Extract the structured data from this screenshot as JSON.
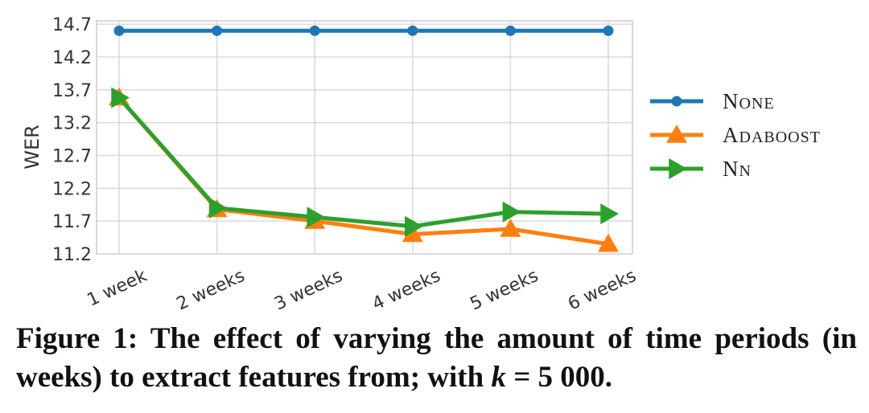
{
  "caption": {
    "prefix": "Figure 1: The effect of varying the amount of time periods (in weeks) to extract features from; with ",
    "math_var": "k",
    "math_rest": " = 5 000."
  },
  "chart_data": {
    "type": "line",
    "categories": [
      "1 week",
      "2 weeks",
      "3 weeks",
      "4 weeks",
      "5 weeks",
      "6 weeks"
    ],
    "ylabel": "WER",
    "xlabel": "",
    "ylim": [
      11.2,
      14.75
    ],
    "yticks": [
      11.2,
      11.7,
      12.2,
      12.7,
      13.2,
      13.7,
      14.2,
      14.7
    ],
    "grid": true,
    "legend_position": "right",
    "series": [
      {
        "name": "None",
        "color": "#1f77b4",
        "marker": "circle",
        "values": [
          14.6,
          14.6,
          14.6,
          14.6,
          14.6,
          14.6
        ]
      },
      {
        "name": "Adaboost",
        "color": "#ff7f0e",
        "marker": "triangle-up",
        "values": [
          13.58,
          11.88,
          11.7,
          11.5,
          11.58,
          11.35
        ]
      },
      {
        "name": "NN",
        "color": "#2ca02c",
        "marker": "triangle-right",
        "values": [
          13.58,
          11.9,
          11.76,
          11.62,
          11.84,
          11.81
        ]
      }
    ]
  }
}
